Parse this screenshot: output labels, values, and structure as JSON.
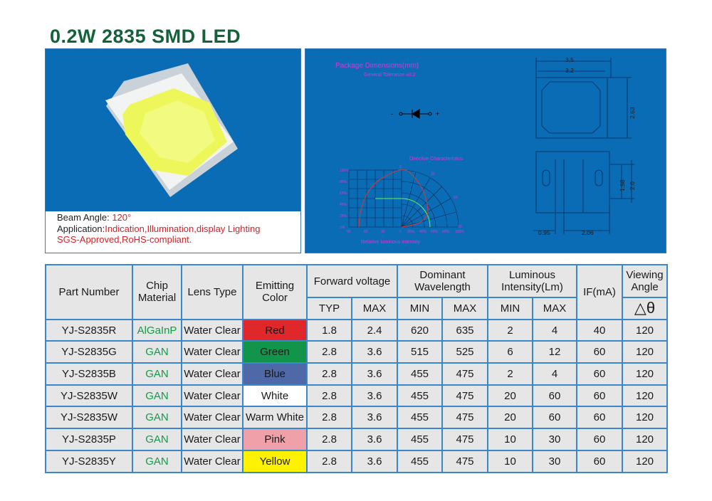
{
  "title": "0.2W 2835 SMD LED",
  "specs": {
    "beam_label": "Beam Angle: ",
    "beam_value": "120°",
    "app_label": "Application:",
    "app_value": "Indication,Illumination,display Lighting",
    "cert": "SGS-Approved,RoHS-compliant."
  },
  "drawing": {
    "title": "Package Dimensions(mm)",
    "tolerance": "General Tolerance ±0.2",
    "minus": "-",
    "plus": "+",
    "chart_title": "Directive Characteristics",
    "chart_xlabel": "Relative luminous intensity",
    "y_ticks": [
      "100%",
      "80%",
      "60%",
      "40%",
      "20%",
      "0%"
    ],
    "x_ticks": [
      "90",
      "60",
      "30",
      "0",
      "20%",
      "40%",
      "60%",
      "80%",
      "100%"
    ],
    "angle_labels": [
      "0",
      "30",
      "60",
      "90"
    ],
    "dims": {
      "w_outer": "3.5",
      "w_inner": "3.2",
      "h": "2.63",
      "pad_h": "1.58",
      "h2": "2.0",
      "pad_w1": "0.95",
      "pad_w2": "2.06"
    },
    "colors": {
      "background": "#0b6cb6",
      "label": "#d23ad8",
      "curve": "#d63a3a",
      "half": "#6cf04a"
    }
  },
  "table": {
    "headers": {
      "part": "Part Number",
      "chip": "Chip Material",
      "lens": "Lens Type",
      "color": "Emitting Color",
      "fv": "Forward voltage",
      "wl": "Dominant Wavelength",
      "lum": "Luminous Intensity(Lm)",
      "if": "IF(mA)",
      "va": "Viewing Angle",
      "typ": "TYP",
      "max": "MAX",
      "min": "MIN",
      "max2": "MAX",
      "min2": "MIN",
      "max3": "MAX",
      "delta": "△θ"
    },
    "rows": [
      {
        "part": "YJ-S2835R",
        "chip": "AlGaInP",
        "lens": "Water Clear",
        "color": "Red",
        "swatch": "#e0282a",
        "typ": "1.8",
        "vmax": "2.4",
        "wmin": "620",
        "wmax": "635",
        "lmin": "2",
        "lmax": "4",
        "if": "40",
        "va": "120"
      },
      {
        "part": "YJ-S2835G",
        "chip": "GAN",
        "lens": "Water Clear",
        "color": "Green",
        "swatch": "#12944a",
        "typ": "2.8",
        "vmax": "3.6",
        "wmin": "515",
        "wmax": "525",
        "lmin": "6",
        "lmax": "12",
        "if": "60",
        "va": "120"
      },
      {
        "part": "YJ-S2835B",
        "chip": "GAN",
        "lens": "Water Clear",
        "color": "Blue",
        "swatch": "#4f68a8",
        "typ": "2.8",
        "vmax": "3.6",
        "wmin": "455",
        "wmax": "475",
        "lmin": "2",
        "lmax": "4",
        "if": "60",
        "va": "120"
      },
      {
        "part": "YJ-S2835W",
        "chip": "GAN",
        "lens": "Water Clear",
        "color": "White",
        "swatch": "#ffffff",
        "typ": "2.8",
        "vmax": "3.6",
        "wmin": "455",
        "wmax": "475",
        "lmin": "20",
        "lmax": "60",
        "if": "60",
        "va": "120"
      },
      {
        "part": "YJ-S2835W",
        "chip": "GAN",
        "lens": "Water Clear",
        "color": "Warm White",
        "swatch": "#e6e6e6",
        "typ": "2.8",
        "vmax": "3.6",
        "wmin": "455",
        "wmax": "475",
        "lmin": "20",
        "lmax": "60",
        "if": "60",
        "va": "120"
      },
      {
        "part": "YJ-S2835P",
        "chip": "GAN",
        "lens": "Water Clear",
        "color": "Pink",
        "swatch": "#f0a0a8",
        "typ": "2.8",
        "vmax": "3.6",
        "wmin": "455",
        "wmax": "475",
        "lmin": "10",
        "lmax": "30",
        "if": "60",
        "va": "120"
      },
      {
        "part": "YJ-S2835Y",
        "chip": "GAN",
        "lens": "Water Clear",
        "color": "Yellow",
        "swatch": "#fff200",
        "typ": "2.8",
        "vmax": "3.6",
        "wmin": "455",
        "wmax": "475",
        "lmin": "10",
        "lmax": "30",
        "if": "60",
        "va": "120"
      }
    ]
  }
}
